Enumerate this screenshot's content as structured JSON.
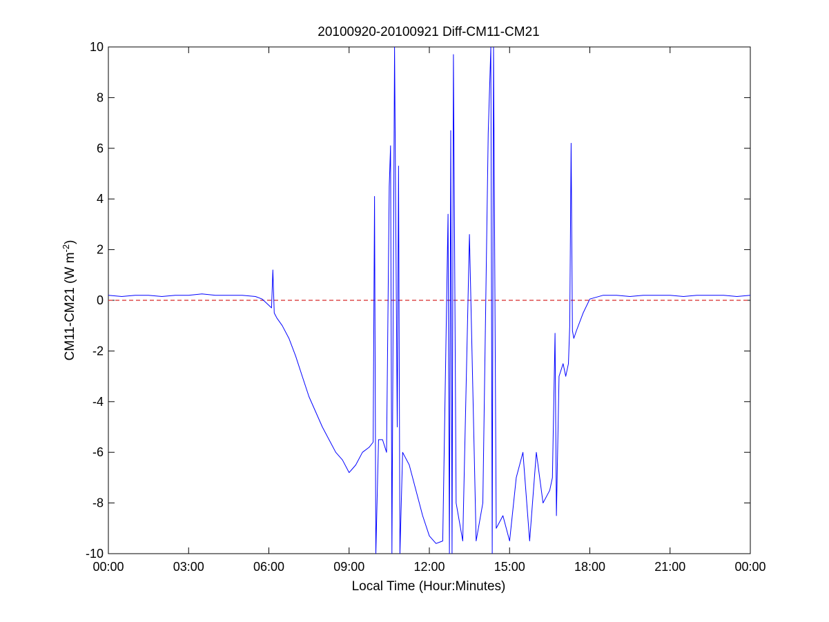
{
  "chart_data": {
    "type": "line",
    "title": "20100920-20100921 Diff-CM11-CM21",
    "xlabel": "Local Time (Hour:Minutes)",
    "ylabel": {
      "prefix": "CM11-CM21 (W m",
      "superscript": "-2",
      "suffix": ")"
    },
    "xlim": [
      0,
      24
    ],
    "ylim": [
      -10,
      10
    ],
    "x_unit": "hours of local time",
    "x_ticks": [
      0,
      3,
      6,
      9,
      12,
      15,
      18,
      21,
      24
    ],
    "x_tick_labels": [
      "00:00",
      "03:00",
      "06:00",
      "09:00",
      "12:00",
      "15:00",
      "18:00",
      "21:00",
      "00:00"
    ],
    "y_ticks": [
      10,
      8,
      6,
      4,
      2,
      0,
      -2,
      -4,
      -6,
      -8,
      -10
    ],
    "y_tick_labels": [
      "10",
      "8",
      "6",
      "4",
      "2",
      "0",
      "-2",
      "-4",
      "-6",
      "-8",
      "-10"
    ],
    "grid": false,
    "colors": {
      "series": "#0000ff",
      "reference": "#d62728"
    },
    "reference_line": {
      "y": 0,
      "style": "dashed"
    },
    "series": [
      {
        "color": "#0000ff",
        "x": [
          0,
          0.5,
          1,
          1.5,
          2,
          2.5,
          3,
          3.5,
          4,
          4.5,
          5,
          5.5,
          5.75,
          6.0,
          6.1,
          6.15,
          6.2,
          6.25,
          6.3,
          6.5,
          6.75,
          7.0,
          7.25,
          7.5,
          7.75,
          8.0,
          8.25,
          8.5,
          8.75,
          9.0,
          9.25,
          9.5,
          9.75,
          9.9,
          9.95,
          10.0,
          10.1,
          10.25,
          10.4,
          10.5,
          10.55,
          10.6,
          10.7,
          10.8,
          10.85,
          10.9,
          11.0,
          11.25,
          11.5,
          11.75,
          12.0,
          12.25,
          12.5,
          12.7,
          12.75,
          12.8,
          12.85,
          12.9,
          13.0,
          13.25,
          13.5,
          13.75,
          14.0,
          14.2,
          14.3,
          14.35,
          14.4,
          14.5,
          14.75,
          15.0,
          15.25,
          15.5,
          15.75,
          16.0,
          16.25,
          16.5,
          16.6,
          16.7,
          16.75,
          16.85,
          17.0,
          17.1,
          17.2,
          17.25,
          17.3,
          17.35,
          17.4,
          17.5,
          17.75,
          18.0,
          18.5,
          19,
          19.5,
          20,
          20.5,
          21,
          21.5,
          22,
          22.5,
          23,
          23.5,
          24
        ],
        "y": [
          0.2,
          0.15,
          0.2,
          0.2,
          0.15,
          0.2,
          0.2,
          0.25,
          0.2,
          0.2,
          0.2,
          0.15,
          0.05,
          -0.2,
          -0.3,
          1.2,
          -0.5,
          -0.6,
          -0.7,
          -1.0,
          -1.5,
          -2.2,
          -3.0,
          -3.8,
          -4.4,
          -5.0,
          -5.5,
          -6.0,
          -6.3,
          -6.8,
          -6.5,
          -6.0,
          -5.8,
          -5.6,
          4.1,
          -10,
          -5.5,
          -5.5,
          -6.0,
          4.5,
          6.1,
          -10,
          10,
          -5.0,
          5.3,
          -10,
          -6.0,
          -6.5,
          -7.5,
          -8.5,
          -9.3,
          -9.6,
          -9.5,
          3.4,
          -10,
          6.7,
          -10,
          9.7,
          -8.0,
          -9.5,
          2.6,
          -9.5,
          -8.0,
          6.6,
          10,
          -10,
          10,
          -9.0,
          -8.5,
          -9.5,
          -7.0,
          -6.0,
          -9.5,
          -6.0,
          -8.0,
          -7.5,
          -7.0,
          -1.3,
          -8.5,
          -3.0,
          -2.5,
          -3.0,
          -2.5,
          -1.0,
          6.2,
          -1.2,
          -1.5,
          -1.2,
          -0.5,
          0.05,
          0.2,
          0.2,
          0.15,
          0.2,
          0.2,
          0.2,
          0.15,
          0.2,
          0.2,
          0.2,
          0.15,
          0.2
        ]
      }
    ]
  }
}
